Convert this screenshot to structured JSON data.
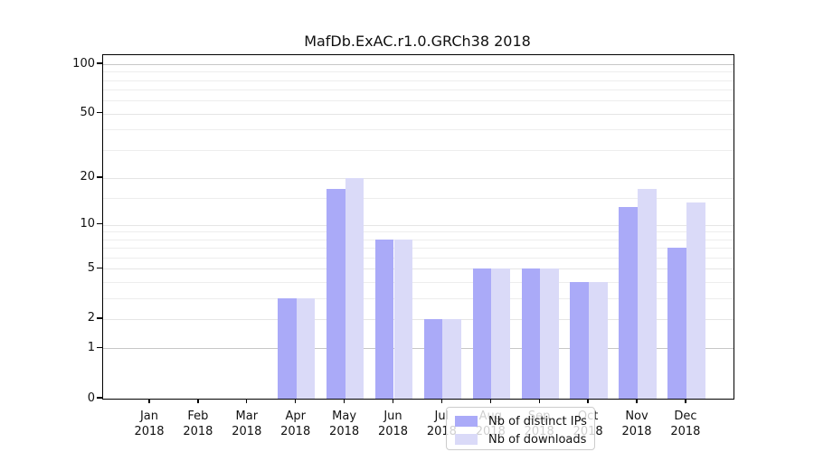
{
  "title": "MafDb.ExAC.r1.0.GRCh38 2018",
  "chart_data": {
    "type": "bar",
    "title": "MafDb.ExAC.r1.0.GRCh38 2018",
    "categories": [
      "Jan",
      "Feb",
      "Mar",
      "Apr",
      "May",
      "Jun",
      "Jul",
      "Aug",
      "Sep",
      "Oct",
      "Nov",
      "Dec"
    ],
    "category_year": "2018",
    "series": [
      {
        "name": "Nb of distinct IPs",
        "color": "#aaaaf8",
        "values": [
          0,
          0,
          0,
          3,
          17,
          8,
          2,
          5,
          5,
          4,
          13,
          7
        ]
      },
      {
        "name": "Nb of downloads",
        "color": "#dadaf8",
        "values": [
          0,
          0,
          0,
          3,
          20,
          8,
          2,
          5,
          5,
          4,
          17,
          14
        ]
      }
    ],
    "xlabel": "",
    "ylabel": "",
    "ylim": [
      0,
      100
    ],
    "yscale": "log1p",
    "yticks": [
      0,
      1,
      2,
      5,
      10,
      20,
      50,
      100
    ],
    "minor_gridlines": [
      3,
      4,
      6,
      7,
      8,
      9,
      15,
      30,
      40,
      60,
      70,
      80,
      90
    ],
    "emphasized_gridlines": [
      1,
      100
    ],
    "grid": true,
    "legend_position": "inside-bottom-center"
  },
  "legend": {
    "series_0_label": "Nb of distinct IPs",
    "series_1_label": "Nb of downloads"
  }
}
